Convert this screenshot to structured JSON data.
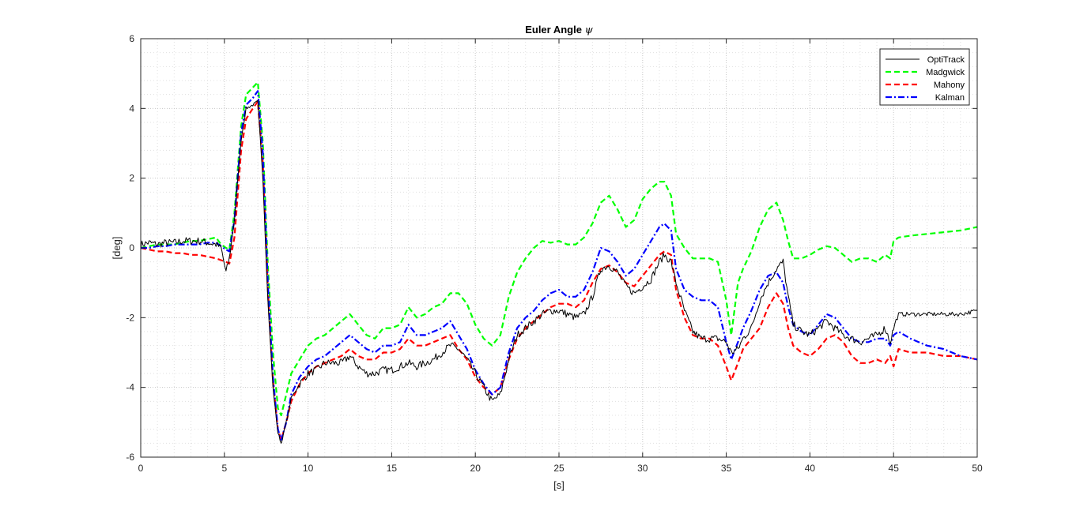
{
  "chart_data": {
    "type": "line",
    "title": "Euler Angle ψ",
    "title_text": "Euler Angle ",
    "title_symbol": "ψ",
    "xlabel": "[s]",
    "ylabel": "[deg]",
    "xlim": [
      0,
      50
    ],
    "ylim": [
      -6,
      6
    ],
    "xticks": [
      "0",
      "5",
      "10",
      "15",
      "20",
      "25",
      "30",
      "35",
      "40",
      "45",
      "50"
    ],
    "yticks": [
      "6",
      "4",
      "2",
      "0",
      "-2",
      "-4",
      "-6"
    ],
    "grid": "major and minor, dotted",
    "legend_position": "top-right",
    "series": [
      {
        "name": "OptiTrack",
        "color": "#000000",
        "style": "solid",
        "noisy": true,
        "x": [
          0,
          0.5,
          1,
          1.5,
          2,
          2.5,
          3,
          3.5,
          4,
          4.5,
          4.8,
          5.1,
          5.3,
          5.6,
          6,
          6.3,
          6.7,
          7,
          7.3,
          7.6,
          7.9,
          8.2,
          8.4,
          8.7,
          9,
          9.5,
          10,
          10.5,
          11,
          11.5,
          12,
          12.5,
          13,
          13.5,
          14,
          14.5,
          15,
          15.5,
          16,
          16.5,
          17,
          17.5,
          18,
          18.5,
          19,
          19.5,
          20,
          20.5,
          21,
          21.5,
          22,
          22.5,
          23,
          23.5,
          24,
          24.5,
          25,
          25.5,
          26,
          26.5,
          27,
          27.5,
          28,
          28.5,
          29,
          29.5,
          30,
          30.5,
          31,
          31.3,
          31.7,
          32,
          32.5,
          33,
          33.5,
          34,
          34.5,
          35,
          35.3,
          35.7,
          36,
          36.5,
          37,
          37.5,
          38,
          38.4,
          38.7,
          39,
          39.5,
          40,
          40.5,
          41,
          41.5,
          42,
          42.5,
          43,
          43.5,
          44,
          44.5,
          44.8,
          45,
          45.3,
          46,
          47,
          48,
          49,
          50
        ],
        "y": [
          0.1,
          0.15,
          0.1,
          0.15,
          0.15,
          0.2,
          0.2,
          0.2,
          0.15,
          0.1,
          0.0,
          -0.7,
          -0.3,
          0.8,
          3.1,
          4.0,
          4.1,
          4.2,
          2.0,
          -1.5,
          -4.0,
          -5.3,
          -5.6,
          -5.0,
          -4.3,
          -3.9,
          -3.6,
          -3.5,
          -3.3,
          -3.3,
          -3.3,
          -3.1,
          -3.4,
          -3.6,
          -3.6,
          -3.5,
          -3.5,
          -3.4,
          -3.3,
          -3.4,
          -3.3,
          -3.2,
          -3.0,
          -2.8,
          -2.9,
          -3.2,
          -3.6,
          -4.0,
          -4.4,
          -4.2,
          -3.2,
          -2.5,
          -2.3,
          -2.1,
          -1.9,
          -1.8,
          -1.8,
          -1.9,
          -2.0,
          -1.9,
          -1.4,
          -0.6,
          -0.5,
          -0.7,
          -1.1,
          -1.3,
          -1.1,
          -0.9,
          -0.4,
          -0.2,
          -0.4,
          -1.0,
          -1.8,
          -2.4,
          -2.6,
          -2.6,
          -2.6,
          -2.7,
          -3.0,
          -2.9,
          -2.6,
          -2.3,
          -1.5,
          -1.0,
          -0.6,
          -0.4,
          -1.4,
          -2.2,
          -2.4,
          -2.5,
          -2.3,
          -2.1,
          -2.3,
          -2.5,
          -2.6,
          -2.7,
          -2.6,
          -2.5,
          -2.3,
          -2.7,
          -2.3,
          -1.9,
          -1.9,
          -1.9,
          -1.9,
          -1.9,
          -1.8
        ]
      },
      {
        "name": "Madgwick",
        "color": "#00ff00",
        "style": "dashed",
        "x": [
          0,
          0.5,
          1,
          1.5,
          2,
          2.5,
          3,
          3.5,
          4,
          4.5,
          4.8,
          5.1,
          5.3,
          5.6,
          6,
          6.3,
          6.7,
          7,
          7.3,
          7.6,
          7.9,
          8.2,
          8.4,
          8.7,
          9,
          9.5,
          10,
          10.5,
          11,
          11.5,
          12,
          12.5,
          13,
          13.5,
          14,
          14.5,
          15,
          15.5,
          16,
          16.5,
          17,
          17.5,
          18,
          18.5,
          19,
          19.5,
          20,
          20.5,
          21,
          21.5,
          22,
          22.5,
          23,
          23.5,
          24,
          24.5,
          25,
          25.5,
          26,
          26.5,
          27,
          27.5,
          28,
          28.5,
          29,
          29.5,
          30,
          30.5,
          31,
          31.3,
          31.7,
          32,
          32.5,
          33,
          33.5,
          34,
          34.5,
          35,
          35.3,
          35.7,
          36,
          36.5,
          37,
          37.5,
          38,
          38.4,
          38.7,
          39,
          39.5,
          40,
          40.5,
          41,
          41.5,
          42,
          42.5,
          43,
          43.5,
          44,
          44.5,
          44.8,
          45,
          45.3,
          46,
          47,
          48,
          49,
          50
        ],
        "y": [
          0.0,
          0.05,
          0.1,
          0.1,
          0.1,
          0.15,
          0.2,
          0.2,
          0.25,
          0.3,
          0.1,
          0.0,
          -0.05,
          1.0,
          3.5,
          4.4,
          4.6,
          4.75,
          3.0,
          -0.5,
          -3.0,
          -4.6,
          -4.8,
          -4.2,
          -3.6,
          -3.2,
          -2.8,
          -2.6,
          -2.5,
          -2.3,
          -2.1,
          -1.9,
          -2.2,
          -2.5,
          -2.6,
          -2.3,
          -2.3,
          -2.2,
          -1.7,
          -2.0,
          -1.9,
          -1.7,
          -1.6,
          -1.3,
          -1.3,
          -1.6,
          -2.2,
          -2.6,
          -2.8,
          -2.5,
          -1.4,
          -0.7,
          -0.3,
          0.0,
          0.2,
          0.15,
          0.2,
          0.1,
          0.1,
          0.3,
          0.7,
          1.3,
          1.5,
          1.1,
          0.6,
          0.8,
          1.4,
          1.7,
          1.9,
          1.9,
          1.5,
          0.4,
          0.0,
          -0.3,
          -0.3,
          -0.3,
          -0.4,
          -1.5,
          -2.5,
          -1.0,
          -0.6,
          -0.1,
          0.6,
          1.1,
          1.3,
          0.8,
          0.2,
          -0.3,
          -0.3,
          -0.2,
          -0.05,
          0.05,
          0.0,
          -0.2,
          -0.4,
          -0.3,
          -0.3,
          -0.4,
          -0.2,
          -0.3,
          0.2,
          0.3,
          0.35,
          0.4,
          0.45,
          0.5,
          0.6
        ]
      },
      {
        "name": "Mahony",
        "color": "#ff0000",
        "style": "dashed",
        "x": [
          0,
          0.5,
          1,
          1.5,
          2,
          2.5,
          3,
          3.5,
          4,
          4.5,
          4.8,
          5.1,
          5.3,
          5.6,
          6,
          6.3,
          6.7,
          7,
          7.3,
          7.6,
          7.9,
          8.2,
          8.4,
          8.7,
          9,
          9.5,
          10,
          10.5,
          11,
          11.5,
          12,
          12.5,
          13,
          13.5,
          14,
          14.5,
          15,
          15.5,
          16,
          16.5,
          17,
          17.5,
          18,
          18.5,
          19,
          19.5,
          20,
          20.5,
          21,
          21.5,
          22,
          22.5,
          23,
          23.5,
          24,
          24.5,
          25,
          25.5,
          26,
          26.5,
          27,
          27.5,
          28,
          28.5,
          29,
          29.5,
          30,
          30.5,
          31,
          31.3,
          31.7,
          32,
          32.5,
          33,
          33.5,
          34,
          34.5,
          35,
          35.3,
          35.7,
          36,
          36.5,
          37,
          37.5,
          38,
          38.4,
          38.7,
          39,
          39.5,
          40,
          40.5,
          41,
          41.5,
          42,
          42.5,
          43,
          43.5,
          44,
          44.5,
          44.8,
          45,
          45.3,
          46,
          47,
          48,
          49,
          50
        ],
        "y": [
          0.0,
          -0.05,
          -0.1,
          -0.1,
          -0.15,
          -0.15,
          -0.2,
          -0.2,
          -0.25,
          -0.3,
          -0.35,
          -0.4,
          -0.45,
          0.3,
          2.8,
          3.7,
          4.0,
          4.2,
          2.4,
          -1.2,
          -3.8,
          -5.2,
          -5.5,
          -5.0,
          -4.4,
          -3.9,
          -3.6,
          -3.4,
          -3.3,
          -3.2,
          -3.1,
          -2.9,
          -3.1,
          -3.2,
          -3.2,
          -3.0,
          -3.0,
          -2.9,
          -2.6,
          -2.8,
          -2.8,
          -2.7,
          -2.6,
          -2.5,
          -2.9,
          -3.2,
          -3.7,
          -4.0,
          -4.2,
          -4.0,
          -3.2,
          -2.6,
          -2.3,
          -2.1,
          -1.9,
          -1.7,
          -1.6,
          -1.6,
          -1.7,
          -1.5,
          -1.0,
          -0.6,
          -0.5,
          -0.7,
          -1.0,
          -1.1,
          -0.8,
          -0.5,
          -0.2,
          -0.1,
          -0.2,
          -1.2,
          -2.0,
          -2.5,
          -2.6,
          -2.6,
          -2.8,
          -3.4,
          -3.8,
          -3.3,
          -2.9,
          -2.6,
          -2.3,
          -1.7,
          -1.3,
          -1.6,
          -2.3,
          -2.8,
          -3.0,
          -3.1,
          -2.9,
          -2.6,
          -2.5,
          -2.7,
          -3.1,
          -3.3,
          -3.3,
          -3.2,
          -3.3,
          -3.1,
          -3.4,
          -2.9,
          -3.0,
          -3.0,
          -3.1,
          -3.1,
          -3.2
        ]
      },
      {
        "name": "Kalman",
        "color": "#0000ff",
        "style": "dash-dot",
        "x": [
          0,
          0.5,
          1,
          1.5,
          2,
          2.5,
          3,
          3.5,
          4,
          4.5,
          4.8,
          5.1,
          5.3,
          5.6,
          6,
          6.3,
          6.7,
          7,
          7.3,
          7.6,
          7.9,
          8.2,
          8.4,
          8.7,
          9,
          9.5,
          10,
          10.5,
          11,
          11.5,
          12,
          12.5,
          13,
          13.5,
          14,
          14.5,
          15,
          15.5,
          16,
          16.5,
          17,
          17.5,
          18,
          18.5,
          19,
          19.5,
          20,
          20.5,
          21,
          21.5,
          22,
          22.5,
          23,
          23.5,
          24,
          24.5,
          25,
          25.5,
          26,
          26.5,
          27,
          27.5,
          28,
          28.5,
          29,
          29.5,
          30,
          30.5,
          31,
          31.3,
          31.7,
          32,
          32.5,
          33,
          33.5,
          34,
          34.5,
          35,
          35.3,
          35.7,
          36,
          36.5,
          37,
          37.5,
          38,
          38.4,
          38.7,
          39,
          39.5,
          40,
          40.5,
          41,
          41.5,
          42,
          42.5,
          43,
          43.5,
          44,
          44.5,
          44.8,
          45,
          45.3,
          46,
          47,
          48,
          49,
          50
        ],
        "y": [
          0.0,
          0.0,
          0.05,
          0.05,
          0.1,
          0.1,
          0.1,
          0.1,
          0.15,
          0.15,
          0.05,
          -0.05,
          -0.1,
          0.8,
          3.3,
          4.1,
          4.3,
          4.5,
          2.7,
          -1.0,
          -3.7,
          -5.2,
          -5.5,
          -5.0,
          -4.2,
          -3.7,
          -3.4,
          -3.2,
          -3.1,
          -2.9,
          -2.7,
          -2.5,
          -2.7,
          -2.9,
          -3.0,
          -2.8,
          -2.8,
          -2.7,
          -2.2,
          -2.5,
          -2.5,
          -2.4,
          -2.3,
          -2.1,
          -2.5,
          -2.9,
          -3.5,
          -3.9,
          -4.2,
          -4.0,
          -3.0,
          -2.3,
          -2.0,
          -1.8,
          -1.5,
          -1.3,
          -1.2,
          -1.4,
          -1.4,
          -1.2,
          -0.7,
          0.0,
          -0.1,
          -0.4,
          -0.8,
          -0.6,
          -0.2,
          0.2,
          0.6,
          0.7,
          0.5,
          -0.6,
          -1.2,
          -1.4,
          -1.5,
          -1.5,
          -1.7,
          -2.7,
          -3.2,
          -2.7,
          -2.3,
          -1.8,
          -1.2,
          -0.8,
          -0.7,
          -1.0,
          -1.7,
          -2.2,
          -2.4,
          -2.5,
          -2.2,
          -1.9,
          -2.0,
          -2.3,
          -2.6,
          -2.7,
          -2.7,
          -2.6,
          -2.6,
          -2.8,
          -2.5,
          -2.4,
          -2.6,
          -2.8,
          -2.9,
          -3.1,
          -3.2
        ]
      }
    ]
  }
}
